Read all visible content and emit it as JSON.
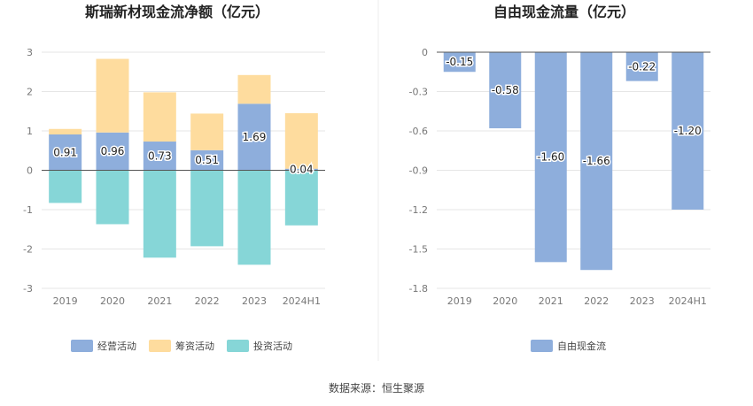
{
  "chart_data": [
    {
      "type": "bar",
      "stacked": true,
      "title": "斯瑞新材现金流净额（亿元）",
      "categories": [
        "2019",
        "2020",
        "2021",
        "2022",
        "2023",
        "2024H1"
      ],
      "ylim": [
        -3,
        3
      ],
      "yticks": [
        "3",
        "2",
        "1",
        "0",
        "-1",
        "-2",
        "-3"
      ],
      "legend_position": "bottom",
      "series": [
        {
          "name": "经营活动",
          "color": "#8eaedc",
          "values": [
            0.91,
            0.96,
            0.73,
            0.51,
            1.69,
            0.04
          ],
          "labels": [
            "0.91",
            "0.96",
            "0.73",
            "0.51",
            "1.69",
            "0.04"
          ]
        },
        {
          "name": "筹资活动",
          "color": "#fedc9e",
          "values": [
            0.14,
            1.87,
            1.25,
            0.93,
            0.73,
            1.41
          ]
        },
        {
          "name": "投资活动",
          "color": "#86d6d7",
          "values": [
            -0.83,
            -1.37,
            -2.22,
            -1.93,
            -2.4,
            -1.4
          ]
        }
      ]
    },
    {
      "type": "bar",
      "title": "自由现金流量（亿元）",
      "categories": [
        "2019",
        "2020",
        "2021",
        "2022",
        "2023",
        "2024H1"
      ],
      "ylim": [
        -1.8,
        0
      ],
      "yticks": [
        "0",
        "-0.3",
        "-0.6",
        "-0.9",
        "-1.2",
        "-1.5",
        "-1.8"
      ],
      "legend_position": "bottom",
      "series": [
        {
          "name": "自由现金流",
          "color": "#8eaedc",
          "values": [
            -0.15,
            -0.58,
            -1.6,
            -1.66,
            -0.22,
            -1.2
          ],
          "labels": [
            "-0.15",
            "-0.58",
            "-1.60",
            "-1.66",
            "-0.22",
            "-1.20"
          ]
        }
      ]
    }
  ],
  "footer": {
    "source": "数据来源：恒生聚源"
  }
}
